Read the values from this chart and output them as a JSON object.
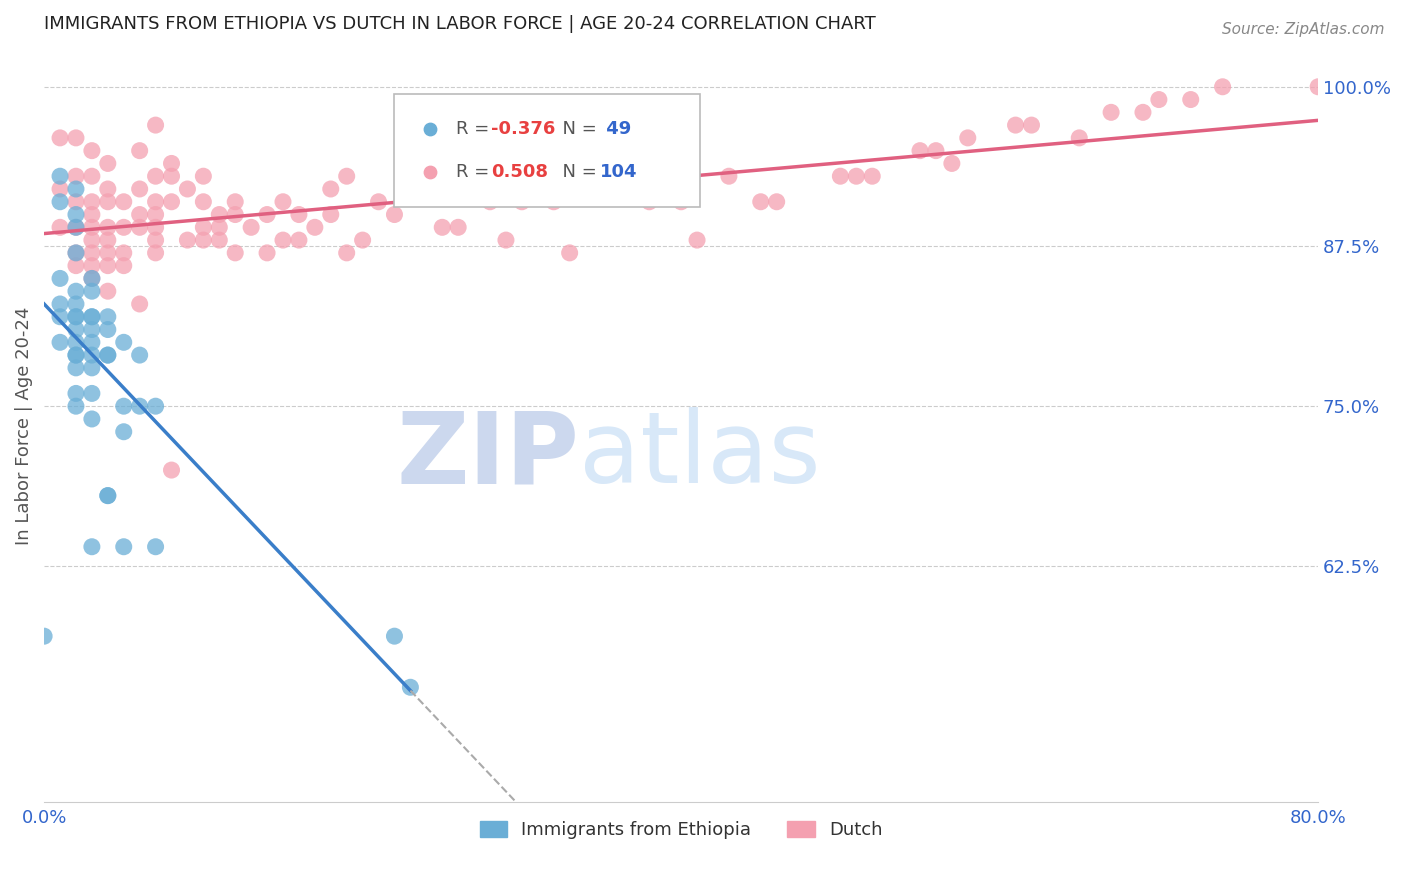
{
  "title": "IMMIGRANTS FROM ETHIOPIA VS DUTCH IN LABOR FORCE | AGE 20-24 CORRELATION CHART",
  "source": "Source: ZipAtlas.com",
  "ylabel": "In Labor Force | Age 20-24",
  "xlim": [
    0.0,
    0.8
  ],
  "ylim": [
    0.44,
    1.03
  ],
  "xticks": [
    0.0,
    0.1,
    0.2,
    0.3,
    0.4,
    0.5,
    0.6,
    0.7,
    0.8
  ],
  "xticklabels": [
    "0.0%",
    "",
    "",
    "",
    "",
    "",
    "",
    "",
    "80.0%"
  ],
  "yticks_right": [
    0.625,
    0.75,
    0.875,
    1.0
  ],
  "ytick_labels_right": [
    "62.5%",
    "75.0%",
    "87.5%",
    "100.0%"
  ],
  "legend_ethiopia_label": "Immigrants from Ethiopia",
  "legend_dutch_label": "Dutch",
  "legend_r_ethiopia": "R = -0.376",
  "legend_n_ethiopia": "N =  49",
  "legend_r_dutch": "R =  0.508",
  "legend_n_dutch": "N = 104",
  "blue_color": "#6aaed6",
  "pink_color": "#f4a0b0",
  "line_blue": "#3a7ec9",
  "line_pink": "#e06080",
  "watermark_zip": "ZIP",
  "watermark_atlas": "atlas",
  "watermark_color_zip": "#ccd8ee",
  "watermark_color_atlas": "#d8e8f8",
  "ethiopia_x": [
    0.0,
    0.01,
    0.01,
    0.01,
    0.01,
    0.01,
    0.01,
    0.02,
    0.02,
    0.02,
    0.02,
    0.02,
    0.02,
    0.02,
    0.02,
    0.02,
    0.02,
    0.02,
    0.02,
    0.02,
    0.02,
    0.02,
    0.03,
    0.03,
    0.03,
    0.03,
    0.03,
    0.03,
    0.03,
    0.03,
    0.03,
    0.03,
    0.03,
    0.04,
    0.04,
    0.04,
    0.04,
    0.04,
    0.04,
    0.05,
    0.05,
    0.05,
    0.05,
    0.06,
    0.06,
    0.07,
    0.07,
    0.22,
    0.23
  ],
  "ethiopia_y": [
    0.57,
    0.93,
    0.91,
    0.85,
    0.83,
    0.82,
    0.8,
    0.92,
    0.9,
    0.89,
    0.87,
    0.84,
    0.83,
    0.82,
    0.82,
    0.81,
    0.8,
    0.79,
    0.79,
    0.78,
    0.76,
    0.75,
    0.85,
    0.84,
    0.82,
    0.82,
    0.81,
    0.8,
    0.79,
    0.78,
    0.76,
    0.74,
    0.64,
    0.82,
    0.81,
    0.79,
    0.79,
    0.68,
    0.68,
    0.8,
    0.75,
    0.73,
    0.64,
    0.79,
    0.75,
    0.75,
    0.64,
    0.57,
    0.53
  ],
  "dutch_x": [
    0.01,
    0.01,
    0.01,
    0.02,
    0.02,
    0.02,
    0.02,
    0.02,
    0.02,
    0.03,
    0.03,
    0.03,
    0.03,
    0.03,
    0.03,
    0.03,
    0.03,
    0.03,
    0.04,
    0.04,
    0.04,
    0.04,
    0.04,
    0.04,
    0.04,
    0.04,
    0.05,
    0.05,
    0.05,
    0.05,
    0.06,
    0.06,
    0.06,
    0.06,
    0.06,
    0.07,
    0.07,
    0.07,
    0.07,
    0.07,
    0.07,
    0.07,
    0.08,
    0.08,
    0.08,
    0.08,
    0.09,
    0.09,
    0.1,
    0.1,
    0.1,
    0.1,
    0.11,
    0.11,
    0.11,
    0.12,
    0.12,
    0.12,
    0.13,
    0.14,
    0.14,
    0.15,
    0.15,
    0.16,
    0.16,
    0.17,
    0.18,
    0.18,
    0.19,
    0.19,
    0.2,
    0.21,
    0.22,
    0.23,
    0.25,
    0.26,
    0.28,
    0.29,
    0.3,
    0.32,
    0.33,
    0.35,
    0.38,
    0.4,
    0.41,
    0.43,
    0.45,
    0.46,
    0.5,
    0.51,
    0.52,
    0.55,
    0.56,
    0.57,
    0.58,
    0.61,
    0.62,
    0.65,
    0.67,
    0.69,
    0.7,
    0.72,
    0.74,
    0.8
  ],
  "dutch_y": [
    0.96,
    0.92,
    0.89,
    0.96,
    0.93,
    0.91,
    0.89,
    0.87,
    0.86,
    0.95,
    0.93,
    0.91,
    0.9,
    0.89,
    0.88,
    0.87,
    0.86,
    0.85,
    0.94,
    0.92,
    0.91,
    0.89,
    0.88,
    0.87,
    0.86,
    0.84,
    0.91,
    0.89,
    0.87,
    0.86,
    0.95,
    0.92,
    0.9,
    0.89,
    0.83,
    0.97,
    0.93,
    0.91,
    0.9,
    0.89,
    0.88,
    0.87,
    0.94,
    0.93,
    0.91,
    0.7,
    0.92,
    0.88,
    0.93,
    0.91,
    0.89,
    0.88,
    0.9,
    0.89,
    0.88,
    0.91,
    0.9,
    0.87,
    0.89,
    0.9,
    0.87,
    0.91,
    0.88,
    0.9,
    0.88,
    0.89,
    0.92,
    0.9,
    0.93,
    0.87,
    0.88,
    0.91,
    0.9,
    0.93,
    0.89,
    0.89,
    0.91,
    0.88,
    0.91,
    0.91,
    0.87,
    0.93,
    0.91,
    0.91,
    0.88,
    0.93,
    0.91,
    0.91,
    0.93,
    0.93,
    0.93,
    0.95,
    0.95,
    0.94,
    0.96,
    0.97,
    0.97,
    0.96,
    0.98,
    0.98,
    0.99,
    0.99,
    1.0,
    1.0
  ]
}
